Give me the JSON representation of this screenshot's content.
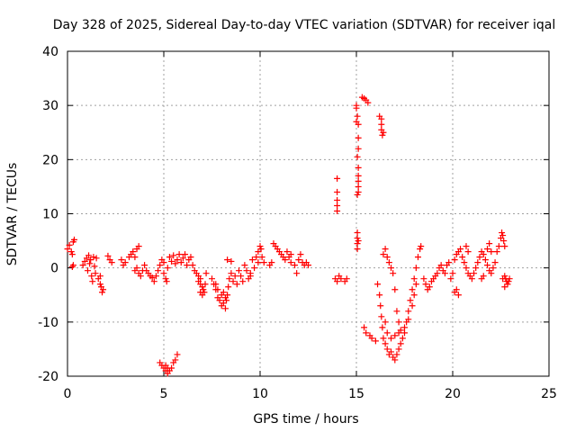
{
  "chart_data": {
    "type": "scatter",
    "title": "Day 328 of 2025, Sidereal Day-to-day VTEC variation (SDTVAR) for receiver iqal",
    "xlabel": "GPS time / hours",
    "ylabel": "SDTVAR / TECUs",
    "xlim": [
      0,
      25
    ],
    "ylim": [
      -20,
      40
    ],
    "x_ticks": [
      "0",
      "5",
      "10",
      "15",
      "20",
      "25"
    ],
    "y_ticks": [
      "-20",
      "-10",
      "0",
      "10",
      "20",
      "30",
      "40"
    ],
    "grid": true,
    "marker": "plus",
    "color": "#ff0000",
    "series": [
      {
        "name": "SDTVAR",
        "points": [
          [
            0.0,
            3.5
          ],
          [
            0.1,
            4.2
          ],
          [
            0.2,
            3.0
          ],
          [
            0.25,
            2.5
          ],
          [
            0.3,
            4.8
          ],
          [
            0.35,
            5.2
          ],
          [
            0.3,
            0.5
          ],
          [
            0.25,
            0.2
          ],
          [
            0.8,
            0.5
          ],
          [
            0.9,
            1.2
          ],
          [
            1.0,
            1.8
          ],
          [
            1.05,
            -0.5
          ],
          [
            1.1,
            2.3
          ],
          [
            1.15,
            0.8
          ],
          [
            1.2,
            1.5
          ],
          [
            1.25,
            -1.5
          ],
          [
            1.3,
            -2.5
          ],
          [
            1.35,
            2.0
          ],
          [
            1.4,
            0.3
          ],
          [
            1.45,
            -1.0
          ],
          [
            1.5,
            1.8
          ],
          [
            1.6,
            -2.0
          ],
          [
            1.7,
            -3.0
          ],
          [
            1.75,
            -3.5
          ],
          [
            1.8,
            -4.5
          ],
          [
            1.85,
            -4.0
          ],
          [
            1.7,
            -1.5
          ],
          [
            2.1,
            2.2
          ],
          [
            2.2,
            1.5
          ],
          [
            2.3,
            1.0
          ],
          [
            2.8,
            1.5
          ],
          [
            2.9,
            0.5
          ],
          [
            3.0,
            1.0
          ],
          [
            3.2,
            2.0
          ],
          [
            3.3,
            2.5
          ],
          [
            3.4,
            3.0
          ],
          [
            3.5,
            2.0
          ],
          [
            3.6,
            3.5
          ],
          [
            3.7,
            4.0
          ],
          [
            3.5,
            -0.5
          ],
          [
            3.6,
            0.0
          ],
          [
            3.7,
            -1.0
          ],
          [
            3.8,
            -1.5
          ],
          [
            3.9,
            -0.5
          ],
          [
            4.0,
            0.5
          ],
          [
            4.1,
            -0.5
          ],
          [
            4.2,
            -1.0
          ],
          [
            4.3,
            -1.5
          ],
          [
            4.4,
            -1.8
          ],
          [
            4.5,
            -2.5
          ],
          [
            4.6,
            -1.5
          ],
          [
            4.7,
            -0.5
          ],
          [
            4.8,
            0.5
          ],
          [
            4.9,
            1.5
          ],
          [
            5.0,
            1.0
          ],
          [
            5.0,
            -1.0
          ],
          [
            5.1,
            -2.0
          ],
          [
            5.15,
            -2.5
          ],
          [
            5.2,
            0.0
          ],
          [
            5.3,
            2.0
          ],
          [
            5.4,
            1.2
          ],
          [
            5.5,
            2.3
          ],
          [
            5.6,
            0.8
          ],
          [
            5.7,
            1.5
          ],
          [
            5.8,
            2.5
          ],
          [
            5.9,
            1.0
          ],
          [
            6.0,
            1.8
          ],
          [
            6.1,
            2.5
          ],
          [
            6.2,
            0.5
          ],
          [
            6.3,
            1.5
          ],
          [
            6.4,
            2.0
          ],
          [
            6.5,
            0.5
          ],
          [
            6.6,
            -0.5
          ],
          [
            6.7,
            -1.0
          ],
          [
            6.8,
            -1.5
          ],
          [
            6.9,
            -2.0
          ],
          [
            7.0,
            -3.5
          ],
          [
            7.05,
            -4.0
          ],
          [
            7.1,
            -4.5
          ],
          [
            7.15,
            -3.0
          ],
          [
            7.2,
            -1.0
          ],
          [
            6.8,
            -2.5
          ],
          [
            6.9,
            -3.0
          ],
          [
            7.0,
            -5.0
          ],
          [
            6.9,
            -4.5
          ],
          [
            7.5,
            -2.0
          ],
          [
            7.6,
            -3.0
          ],
          [
            7.7,
            -4.0
          ],
          [
            7.8,
            -5.5
          ],
          [
            7.9,
            -6.0
          ],
          [
            8.0,
            -7.0
          ],
          [
            8.1,
            -6.5
          ],
          [
            8.2,
            -7.5
          ],
          [
            8.25,
            -6.0
          ],
          [
            8.3,
            -5.0
          ],
          [
            8.35,
            -3.5
          ],
          [
            7.8,
            -4.0
          ],
          [
            7.7,
            -3.0
          ],
          [
            8.0,
            -5.0
          ],
          [
            8.1,
            -4.5
          ],
          [
            8.2,
            -5.5
          ],
          [
            8.4,
            -2.0
          ],
          [
            8.5,
            -1.0
          ],
          [
            8.6,
            -2.5
          ],
          [
            8.7,
            -1.5
          ],
          [
            8.8,
            -3.0
          ],
          [
            8.9,
            -0.5
          ],
          [
            9.0,
            -1.5
          ],
          [
            9.1,
            -2.5
          ],
          [
            9.2,
            0.5
          ],
          [
            9.3,
            -0.5
          ],
          [
            9.4,
            -2.0
          ],
          [
            9.5,
            -1.0
          ],
          [
            9.6,
            1.5
          ],
          [
            9.7,
            0.0
          ],
          [
            9.8,
            2.0
          ],
          [
            9.9,
            3.0
          ],
          [
            10.0,
            4.0
          ],
          [
            10.05,
            3.5
          ],
          [
            10.1,
            2.0
          ],
          [
            10.2,
            1.0
          ],
          [
            9.9,
            1.0
          ],
          [
            9.5,
            -1.5
          ],
          [
            8.3,
            1.5
          ],
          [
            8.5,
            1.2
          ],
          [
            10.5,
            0.5
          ],
          [
            10.6,
            1.0
          ],
          [
            10.7,
            4.5
          ],
          [
            10.8,
            4.0
          ],
          [
            10.9,
            3.5
          ],
          [
            11.0,
            3.0
          ],
          [
            11.1,
            2.5
          ],
          [
            11.2,
            2.0
          ],
          [
            11.3,
            1.5
          ],
          [
            11.4,
            3.0
          ],
          [
            11.5,
            2.0
          ],
          [
            11.6,
            1.0
          ],
          [
            11.8,
            0.5
          ],
          [
            11.9,
            -1.0
          ],
          [
            11.6,
            2.5
          ],
          [
            12.0,
            1.5
          ],
          [
            12.1,
            2.5
          ],
          [
            12.2,
            1.0
          ],
          [
            12.3,
            0.5
          ],
          [
            12.4,
            1.0
          ],
          [
            12.5,
            0.5
          ],
          [
            13.9,
            -2.0
          ],
          [
            14.0,
            -2.5
          ],
          [
            14.1,
            -1.5
          ],
          [
            14.2,
            -2.0
          ],
          [
            14.4,
            -2.5
          ],
          [
            14.5,
            -2.0
          ],
          [
            14.0,
            10.5
          ],
          [
            14.0,
            11.5
          ],
          [
            14.0,
            12.5
          ],
          [
            14.0,
            14.0
          ],
          [
            14.0,
            16.5
          ],
          [
            15.0,
            30.0
          ],
          [
            15.0,
            29.5
          ],
          [
            15.05,
            28.0
          ],
          [
            15.0,
            27.0
          ],
          [
            15.1,
            26.5
          ],
          [
            15.1,
            24.0
          ],
          [
            15.1,
            22.0
          ],
          [
            15.05,
            20.5
          ],
          [
            15.1,
            18.5
          ],
          [
            15.1,
            17.0
          ],
          [
            15.1,
            16.0
          ],
          [
            15.1,
            15.0
          ],
          [
            15.1,
            14.0
          ],
          [
            15.05,
            13.5
          ],
          [
            15.3,
            31.5
          ],
          [
            15.4,
            31.3
          ],
          [
            15.5,
            31.0
          ],
          [
            15.6,
            30.5
          ],
          [
            16.2,
            28.0
          ],
          [
            16.3,
            27.5
          ],
          [
            16.3,
            26.5
          ],
          [
            16.3,
            25.5
          ],
          [
            16.35,
            24.5
          ],
          [
            16.4,
            25.0
          ],
          [
            15.05,
            6.5
          ],
          [
            15.05,
            5.5
          ],
          [
            15.05,
            4.5
          ],
          [
            15.05,
            3.5
          ],
          [
            15.1,
            5.0
          ],
          [
            15.4,
            -11.0
          ],
          [
            15.5,
            -12.0
          ],
          [
            15.7,
            -12.5
          ],
          [
            15.8,
            -13.0
          ],
          [
            16.0,
            -13.5
          ],
          [
            16.1,
            -3.0
          ],
          [
            16.2,
            -5.0
          ],
          [
            16.25,
            -7.0
          ],
          [
            16.3,
            -9.0
          ],
          [
            16.35,
            -11.0
          ],
          [
            16.4,
            -13.0
          ],
          [
            16.5,
            -14.0
          ],
          [
            16.6,
            -15.0
          ],
          [
            16.7,
            -16.0
          ],
          [
            16.8,
            -15.5
          ],
          [
            16.9,
            -16.5
          ],
          [
            17.0,
            -17.0
          ],
          [
            17.1,
            -16.0
          ],
          [
            17.2,
            -15.0
          ],
          [
            17.3,
            -14.0
          ],
          [
            17.4,
            -13.0
          ],
          [
            17.5,
            -12.0
          ],
          [
            17.6,
            -10.0
          ],
          [
            17.7,
            -8.0
          ],
          [
            17.8,
            -6.0
          ],
          [
            17.9,
            -4.0
          ],
          [
            18.0,
            -2.0
          ],
          [
            18.1,
            0.0
          ],
          [
            18.2,
            2.0
          ],
          [
            18.3,
            3.5
          ],
          [
            18.35,
            4.0
          ],
          [
            17.2,
            -12.0
          ],
          [
            17.0,
            -12.5
          ],
          [
            16.8,
            -13.0
          ],
          [
            16.6,
            -12.0
          ],
          [
            16.5,
            -10.0
          ],
          [
            16.4,
            2.5
          ],
          [
            16.5,
            3.5
          ],
          [
            16.6,
            2.0
          ],
          [
            16.7,
            1.0
          ],
          [
            16.8,
            0.0
          ],
          [
            16.9,
            -1.0
          ],
          [
            17.0,
            -4.0
          ],
          [
            17.1,
            -8.0
          ],
          [
            17.2,
            -10.0
          ],
          [
            17.3,
            -11.5
          ],
          [
            17.5,
            -11.0
          ],
          [
            17.7,
            -9.5
          ],
          [
            17.9,
            -7.0
          ],
          [
            18.0,
            -5.0
          ],
          [
            18.1,
            -3.0
          ],
          [
            18.5,
            -2.0
          ],
          [
            18.6,
            -3.0
          ],
          [
            18.7,
            -4.0
          ],
          [
            18.8,
            -3.5
          ],
          [
            18.9,
            -2.5
          ],
          [
            19.0,
            -2.0
          ],
          [
            19.1,
            -1.5
          ],
          [
            19.2,
            -1.0
          ],
          [
            19.3,
            0.0
          ],
          [
            19.4,
            0.5
          ],
          [
            19.5,
            -0.5
          ],
          [
            19.6,
            -1.0
          ],
          [
            19.7,
            0.5
          ],
          [
            19.8,
            1.0
          ],
          [
            19.9,
            -2.0
          ],
          [
            20.0,
            -1.0
          ],
          [
            20.1,
            -4.5
          ],
          [
            20.2,
            -4.0
          ],
          [
            20.3,
            -5.0
          ],
          [
            20.1,
            1.5
          ],
          [
            20.2,
            2.5
          ],
          [
            20.3,
            3.0
          ],
          [
            20.4,
            3.5
          ],
          [
            20.5,
            2.0
          ],
          [
            20.6,
            1.0
          ],
          [
            20.7,
            0.0
          ],
          [
            20.8,
            -1.0
          ],
          [
            20.9,
            -1.5
          ],
          [
            21.0,
            -2.0
          ],
          [
            21.1,
            -1.0
          ],
          [
            21.2,
            0.0
          ],
          [
            21.3,
            1.0
          ],
          [
            21.4,
            2.0
          ],
          [
            21.5,
            3.0
          ],
          [
            21.6,
            2.5
          ],
          [
            21.7,
            1.5
          ],
          [
            21.8,
            0.5
          ],
          [
            21.9,
            -0.5
          ],
          [
            22.0,
            -1.0
          ],
          [
            22.1,
            0.0
          ],
          [
            22.2,
            1.0
          ],
          [
            22.3,
            3.0
          ],
          [
            22.4,
            4.0
          ],
          [
            22.5,
            5.5
          ],
          [
            22.55,
            6.5
          ],
          [
            22.6,
            6.0
          ],
          [
            22.65,
            5.0
          ],
          [
            22.7,
            4.0
          ],
          [
            22.7,
            -1.5
          ],
          [
            22.75,
            -2.0
          ],
          [
            22.8,
            -2.5
          ],
          [
            22.85,
            -3.0
          ],
          [
            22.9,
            -2.5
          ],
          [
            22.95,
            -2.0
          ],
          [
            22.7,
            -3.5
          ],
          [
            22.6,
            -2.0
          ],
          [
            21.8,
            3.5
          ],
          [
            21.9,
            4.5
          ],
          [
            22.0,
            3.0
          ],
          [
            21.6,
            -1.5
          ],
          [
            21.5,
            -2.0
          ],
          [
            20.7,
            4.0
          ],
          [
            20.8,
            3.0
          ],
          [
            4.8,
            -17.5
          ],
          [
            4.9,
            -18.0
          ],
          [
            5.0,
            -18.5
          ],
          [
            5.1,
            -19.0
          ],
          [
            5.2,
            -19.5
          ],
          [
            5.3,
            -19.0
          ],
          [
            5.4,
            -18.5
          ],
          [
            5.5,
            -17.5
          ],
          [
            5.6,
            -17.0
          ],
          [
            5.7,
            -16.0
          ],
          [
            5.1,
            -18.0
          ],
          [
            5.2,
            -18.5
          ]
        ]
      }
    ]
  }
}
